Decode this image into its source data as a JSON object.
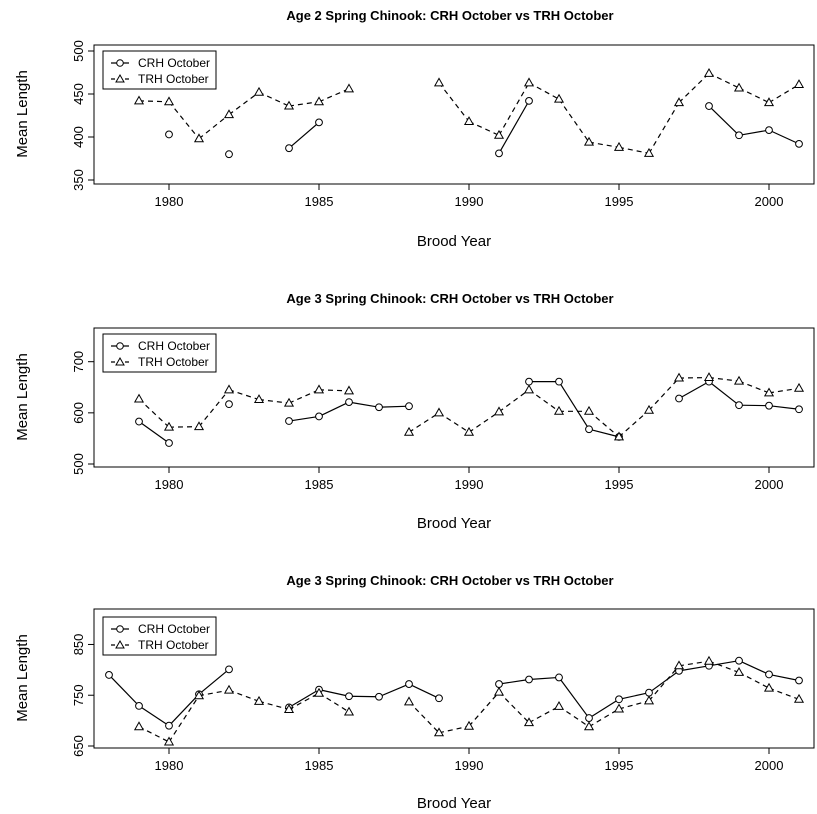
{
  "chart_data": [
    {
      "type": "line",
      "title": "Age 2 Spring Chinook: CRH October vs TRH October",
      "xlabel": "Brood Year",
      "ylabel": "Mean Length",
      "xlim": [
        1977.5,
        2001.5
      ],
      "ylim": [
        350,
        500
      ],
      "xticks": [
        1980,
        1985,
        1990,
        1995,
        2000
      ],
      "yticks": [
        350,
        400,
        450,
        500
      ],
      "legend_position": "top-left",
      "series": [
        {
          "name": "CRH October",
          "marker": "circle",
          "line": "solid",
          "x": [
            1979,
            1980,
            1981,
            1982,
            1983,
            1984,
            1985,
            1986,
            1987,
            1988,
            1989,
            1990,
            1991,
            1992,
            1993,
            1994,
            1995,
            1996,
            1997,
            1998,
            1999,
            2000,
            2001
          ],
          "y": [
            null,
            403,
            null,
            380,
            null,
            387,
            417,
            null,
            null,
            null,
            null,
            null,
            381,
            442,
            null,
            null,
            null,
            null,
            null,
            436,
            402,
            408,
            392
          ]
        },
        {
          "name": "TRH October",
          "marker": "triangle",
          "line": "dashed",
          "x": [
            1979,
            1980,
            1981,
            1982,
            1983,
            1984,
            1985,
            1986,
            1987,
            1988,
            1989,
            1990,
            1991,
            1992,
            1993,
            1994,
            1995,
            1996,
            1997,
            1998,
            1999,
            2000,
            2001
          ],
          "y": [
            442,
            441,
            398,
            426,
            452,
            436,
            441,
            456,
            null,
            null,
            463,
            418,
            402,
            463,
            444,
            394,
            388,
            381,
            440,
            474,
            457,
            440,
            461
          ]
        }
      ]
    },
    {
      "type": "line",
      "title": "Age 3 Spring Chinook: CRH October vs TRH October",
      "xlabel": "Brood Year",
      "ylabel": "Mean Length",
      "xlim": [
        1977.5,
        2001.5
      ],
      "ylim": [
        500,
        760
      ],
      "xticks": [
        1980,
        1985,
        1990,
        1995,
        2000
      ],
      "yticks": [
        500,
        600,
        700
      ],
      "legend_position": "top-left",
      "series": [
        {
          "name": "CRH October",
          "marker": "circle",
          "line": "solid",
          "x": [
            1979,
            1980,
            1981,
            1982,
            1983,
            1984,
            1985,
            1986,
            1987,
            1988,
            1989,
            1990,
            1991,
            1992,
            1993,
            1994,
            1995,
            1996,
            1997,
            1998,
            1999,
            2000,
            2001
          ],
          "y": [
            583,
            541,
            null,
            617,
            null,
            584,
            593,
            621,
            611,
            613,
            null,
            null,
            null,
            661,
            661,
            568,
            553,
            null,
            628,
            661,
            615,
            614,
            607
          ]
        },
        {
          "name": "TRH October",
          "marker": "triangle",
          "line": "dashed",
          "x": [
            1979,
            1980,
            1981,
            1982,
            1983,
            1984,
            1985,
            1986,
            1987,
            1988,
            1989,
            1990,
            1991,
            1992,
            1993,
            1994,
            1995,
            1996,
            1997,
            1998,
            1999,
            2000,
            2001
          ],
          "y": [
            627,
            572,
            573,
            645,
            626,
            619,
            645,
            643,
            null,
            562,
            600,
            562,
            602,
            645,
            603,
            603,
            553,
            605,
            668,
            669,
            662,
            639,
            648
          ]
        }
      ]
    },
    {
      "type": "line",
      "title": "Age 3 Spring Chinook: CRH October vs TRH October",
      "xlabel": "Brood Year",
      "ylabel": "Mean Length",
      "xlim": [
        1977.5,
        2001.5
      ],
      "ylim": [
        650,
        910
      ],
      "xticks": [
        1980,
        1985,
        1990,
        1995,
        2000
      ],
      "yticks": [
        650,
        750,
        850
      ],
      "legend_position": "top-left",
      "series": [
        {
          "name": "CRH October",
          "marker": "circle",
          "line": "solid",
          "x": [
            1978,
            1979,
            1980,
            1981,
            1982,
            1983,
            1984,
            1985,
            1986,
            1987,
            1988,
            1989,
            1990,
            1991,
            1992,
            1993,
            1994,
            1995,
            1996,
            1997,
            1998,
            1999,
            2000,
            2001
          ],
          "y": [
            790,
            729,
            690,
            752,
            801,
            null,
            726,
            761,
            748,
            747,
            772,
            744,
            null,
            772,
            781,
            785,
            705,
            742,
            755,
            798,
            808,
            818,
            791,
            779
          ]
        },
        {
          "name": "TRH October",
          "marker": "triangle",
          "line": "dashed",
          "x": [
            1978,
            1979,
            1980,
            1981,
            1982,
            1983,
            1984,
            1985,
            1986,
            1987,
            1988,
            1989,
            1990,
            1991,
            1992,
            1993,
            1994,
            1995,
            1996,
            1997,
            1998,
            1999,
            2000,
            2001
          ],
          "y": [
            null,
            688,
            658,
            749,
            760,
            738,
            722,
            754,
            717,
            null,
            737,
            676,
            689,
            756,
            696,
            728,
            688,
            723,
            739,
            808,
            817,
            795,
            764,
            742
          ]
        }
      ]
    }
  ]
}
